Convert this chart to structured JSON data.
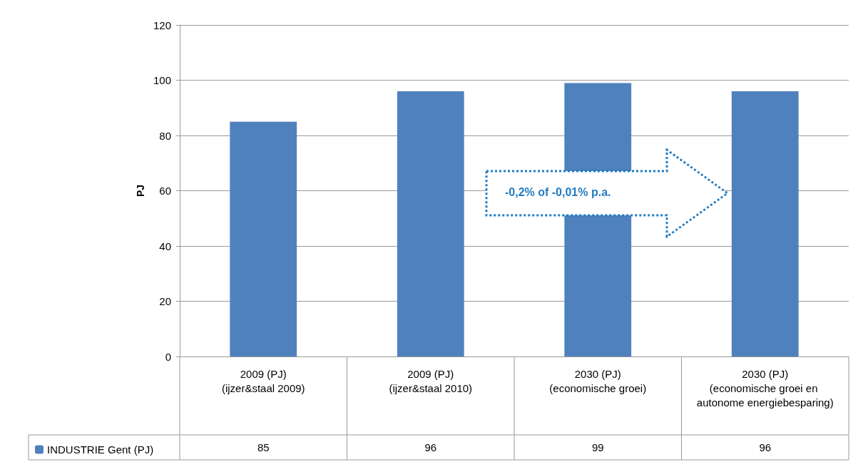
{
  "chart_data": {
    "type": "bar",
    "ylabel": "PJ",
    "categories": [
      "2009 (PJ) (ijzer&staal 2009)",
      "2009 (PJ) (ijzer&staal 2010)",
      "2030 (PJ) (economische groei)",
      "2030 (PJ) (economische groei en autonome energiebesparing)"
    ],
    "series": [
      {
        "name": "INDUSTRIE Gent (PJ)",
        "color": "#4f81bd",
        "values": [
          85,
          96,
          99,
          96
        ]
      }
    ],
    "ylim": [
      0,
      120
    ],
    "yticks": [
      0,
      20,
      40,
      60,
      80,
      100,
      120
    ],
    "grid": "y",
    "legend": "bottom left",
    "data_labels": true,
    "annotations": [
      "-0,2% of -0,01% p.a."
    ]
  }
}
